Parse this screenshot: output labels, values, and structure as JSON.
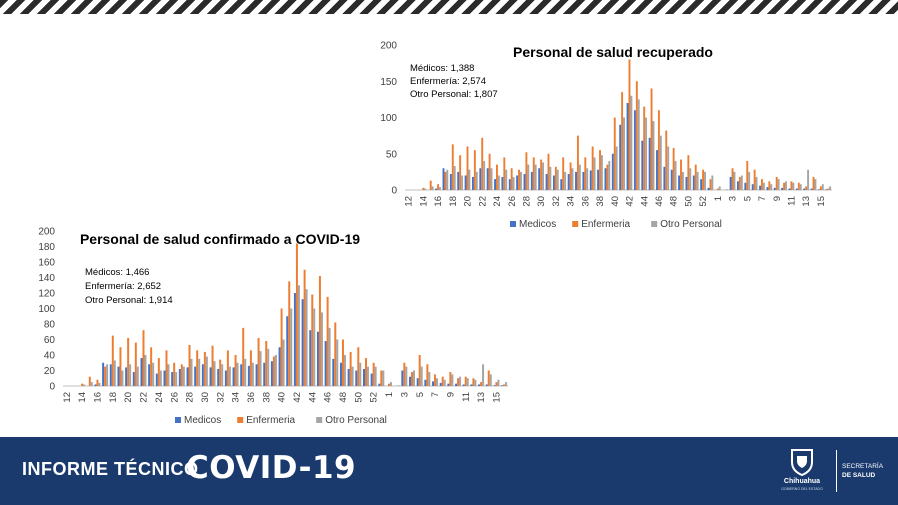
{
  "chart_data": [
    {
      "type": "bar",
      "title": "Personal de salud recuperado",
      "annotations": [
        "Médicos: 1,388",
        "Enfermería: 2,574",
        "Otro Personal: 1,807"
      ],
      "ylim": [
        0,
        200
      ],
      "yticks": [
        0,
        50,
        100,
        150,
        200
      ],
      "xtick_labels": [
        "12",
        "14",
        "16",
        "18",
        "20",
        "22",
        "24",
        "26",
        "28",
        "30",
        "32",
        "34",
        "36",
        "38",
        "40",
        "42",
        "44",
        "46",
        "48",
        "50",
        "52",
        "1",
        "3",
        "5",
        "7",
        "9",
        "11",
        "13",
        "15"
      ],
      "categories": [
        "12",
        "13",
        "14",
        "15",
        "16",
        "17",
        "18",
        "19",
        "20",
        "21",
        "22",
        "23",
        "24",
        "25",
        "26",
        "27",
        "28",
        "29",
        "30",
        "31",
        "32",
        "33",
        "34",
        "35",
        "36",
        "37",
        "38",
        "39",
        "40",
        "41",
        "42",
        "43",
        "44",
        "45",
        "46",
        "47",
        "48",
        "49",
        "50",
        "51",
        "52",
        "53",
        "1",
        "2",
        "3",
        "4",
        "5",
        "6",
        "7",
        "8",
        "9",
        "10",
        "11",
        "12",
        "13",
        "14",
        "15",
        "16"
      ],
      "legend": "bottom",
      "grid": false,
      "series": [
        {
          "name": "Medicos",
          "color": "#4472c4",
          "values": [
            0,
            0,
            0,
            0,
            2,
            30,
            22,
            25,
            20,
            18,
            30,
            30,
            15,
            18,
            15,
            20,
            22,
            25,
            30,
            22,
            20,
            15,
            22,
            25,
            25,
            27,
            28,
            30,
            50,
            90,
            120,
            110,
            68,
            72,
            55,
            32,
            28,
            20,
            18,
            20,
            15,
            3,
            0,
            0,
            18,
            12,
            10,
            8,
            6,
            4,
            3,
            3,
            2,
            2,
            2,
            2,
            1,
            1
          ]
        },
        {
          "name": "Enfermeria",
          "color": "#ed7d31",
          "values": [
            0,
            0,
            3,
            13,
            8,
            25,
            63,
            48,
            60,
            55,
            72,
            50,
            35,
            45,
            30,
            28,
            52,
            45,
            42,
            50,
            32,
            45,
            38,
            75,
            45,
            60,
            55,
            35,
            100,
            135,
            180,
            150,
            115,
            140,
            110,
            82,
            58,
            42,
            48,
            35,
            28,
            15,
            2,
            0,
            30,
            18,
            40,
            28,
            15,
            12,
            18,
            10,
            12,
            10,
            5,
            18,
            5,
            2
          ]
        },
        {
          "name": "Otro Personal",
          "color": "#a5a5a5",
          "values": [
            0,
            0,
            2,
            5,
            4,
            28,
            33,
            20,
            28,
            25,
            40,
            30,
            20,
            28,
            18,
            25,
            35,
            35,
            38,
            32,
            28,
            25,
            30,
            35,
            30,
            45,
            48,
            40,
            60,
            100,
            130,
            125,
            100,
            95,
            75,
            60,
            40,
            25,
            30,
            25,
            25,
            20,
            5,
            1,
            25,
            20,
            25,
            18,
            10,
            8,
            15,
            12,
            10,
            8,
            28,
            15,
            8,
            5
          ]
        }
      ]
    },
    {
      "type": "bar",
      "title": "Personal de salud confirmado a COVID-19",
      "annotations": [
        "Médicos: 1,466",
        "Enfermería: 2,652",
        "Otro Personal: 1,914"
      ],
      "ylim": [
        0,
        200
      ],
      "yticks": [
        0,
        20,
        40,
        60,
        80,
        100,
        120,
        140,
        160,
        180,
        200
      ],
      "xtick_labels": [
        "12",
        "14",
        "16",
        "18",
        "20",
        "22",
        "24",
        "26",
        "28",
        "30",
        "32",
        "34",
        "36",
        "38",
        "40",
        "42",
        "44",
        "46",
        "48",
        "50",
        "52",
        "1",
        "3",
        "5",
        "7",
        "9",
        "11",
        "13",
        "15"
      ],
      "categories": [
        "12",
        "13",
        "14",
        "15",
        "16",
        "17",
        "18",
        "19",
        "20",
        "21",
        "22",
        "23",
        "24",
        "25",
        "26",
        "27",
        "28",
        "29",
        "30",
        "31",
        "32",
        "33",
        "34",
        "35",
        "36",
        "37",
        "38",
        "39",
        "40",
        "41",
        "42",
        "43",
        "44",
        "45",
        "46",
        "47",
        "48",
        "49",
        "50",
        "51",
        "52",
        "53",
        "1",
        "2",
        "3",
        "4",
        "5",
        "6",
        "7",
        "8",
        "9",
        "10",
        "11",
        "12",
        "13",
        "14",
        "15",
        "16"
      ],
      "legend": "bottom",
      "grid": false,
      "series": [
        {
          "name": "Medicos",
          "color": "#4472c4",
          "values": [
            0,
            0,
            0,
            0,
            2,
            30,
            28,
            25,
            24,
            18,
            36,
            28,
            16,
            20,
            18,
            22,
            24,
            25,
            28,
            24,
            22,
            20,
            24,
            28,
            26,
            28,
            30,
            32,
            50,
            90,
            120,
            112,
            72,
            70,
            58,
            35,
            30,
            22,
            20,
            22,
            16,
            3,
            0,
            0,
            20,
            12,
            10,
            8,
            6,
            4,
            3,
            3,
            2,
            2,
            2,
            2,
            1,
            1
          ]
        },
        {
          "name": "Enfermeria",
          "color": "#ed7d31",
          "values": [
            0,
            0,
            3,
            12,
            8,
            25,
            65,
            50,
            62,
            56,
            72,
            50,
            36,
            46,
            30,
            28,
            53,
            46,
            44,
            52,
            34,
            46,
            40,
            75,
            46,
            62,
            58,
            38,
            100,
            135,
            184,
            150,
            118,
            142,
            115,
            82,
            60,
            44,
            50,
            36,
            30,
            20,
            3,
            0,
            30,
            18,
            40,
            28,
            15,
            12,
            18,
            10,
            12,
            10,
            5,
            20,
            5,
            2
          ]
        },
        {
          "name": "Otro Personal",
          "color": "#a5a5a5",
          "values": [
            0,
            0,
            2,
            5,
            4,
            28,
            33,
            20,
            28,
            25,
            40,
            30,
            20,
            28,
            18,
            25,
            35,
            35,
            38,
            32,
            28,
            25,
            30,
            35,
            30,
            45,
            48,
            40,
            60,
            100,
            130,
            125,
            100,
            95,
            75,
            60,
            40,
            25,
            30,
            25,
            25,
            20,
            5,
            1,
            25,
            20,
            25,
            18,
            10,
            8,
            15,
            12,
            10,
            8,
            28,
            15,
            8,
            5
          ]
        }
      ]
    }
  ],
  "footer": {
    "title": "INFORME TÉCNICO",
    "big": "COVID-19",
    "logo_text": "Chihuahua",
    "logo_sub": "GOBIERNO DEL ESTADO",
    "secretaria_line1": "SECRETARÍA",
    "secretaria_line2": "DE SALUD",
    "bg_color": "#1a3a6e"
  }
}
